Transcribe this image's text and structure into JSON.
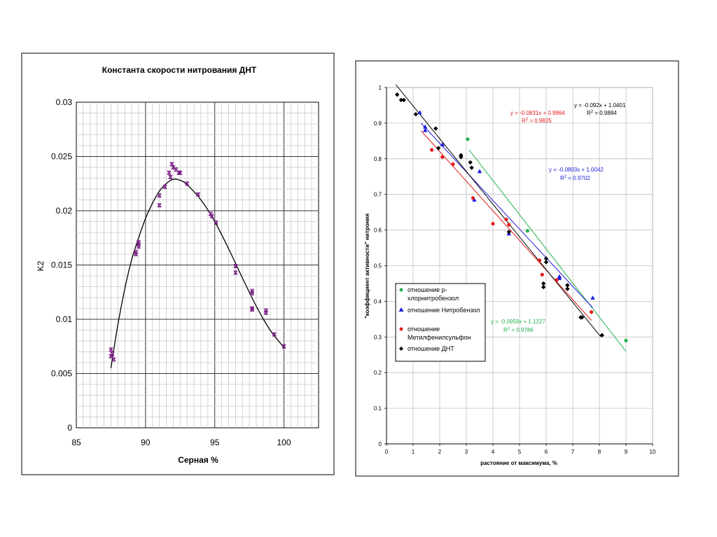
{
  "chart_data": [
    {
      "type": "scatter",
      "title": "Константа скорости нитрования ДНТ",
      "xlabel": "Серная %",
      "ylabel": "K2",
      "xlim": [
        85,
        102.5
      ],
      "ylim": [
        0,
        0.03
      ],
      "x_ticks": [
        85,
        90,
        95,
        100
      ],
      "y_ticks": [
        0,
        0.005,
        0.01,
        0.015,
        0.02,
        0.025,
        0.03
      ],
      "x_tick_labels": [
        "85",
        "90",
        "95",
        "100"
      ],
      "y_tick_labels": [
        "0",
        "0.005",
        "0.01",
        "0.015",
        "0.02",
        "0.025",
        "0.03"
      ],
      "grid": true,
      "marker_color": "#7a1f86",
      "points": [
        {
          "x": 87.5,
          "y": 0.0072
        },
        {
          "x": 87.6,
          "y": 0.0068
        },
        {
          "x": 87.5,
          "y": 0.0066
        },
        {
          "x": 87.7,
          "y": 0.0063
        },
        {
          "x": 89.3,
          "y": 0.0162
        },
        {
          "x": 89.3,
          "y": 0.016
        },
        {
          "x": 89.5,
          "y": 0.0169
        },
        {
          "x": 89.5,
          "y": 0.0171
        },
        {
          "x": 89.5,
          "y": 0.0167
        },
        {
          "x": 91.0,
          "y": 0.0214
        },
        {
          "x": 91.0,
          "y": 0.0205
        },
        {
          "x": 91.4,
          "y": 0.0222
        },
        {
          "x": 91.7,
          "y": 0.0235
        },
        {
          "x": 91.8,
          "y": 0.0231
        },
        {
          "x": 91.9,
          "y": 0.0243
        },
        {
          "x": 92.0,
          "y": 0.024
        },
        {
          "x": 92.2,
          "y": 0.0238
        },
        {
          "x": 92.4,
          "y": 0.0235
        },
        {
          "x": 92.5,
          "y": 0.0235
        },
        {
          "x": 93.0,
          "y": 0.0225
        },
        {
          "x": 93.8,
          "y": 0.0215
        },
        {
          "x": 94.7,
          "y": 0.0197
        },
        {
          "x": 94.8,
          "y": 0.0195
        },
        {
          "x": 95.1,
          "y": 0.0189
        },
        {
          "x": 96.5,
          "y": 0.0149
        },
        {
          "x": 96.5,
          "y": 0.0143
        },
        {
          "x": 97.7,
          "y": 0.0126
        },
        {
          "x": 97.7,
          "y": 0.0124
        },
        {
          "x": 97.7,
          "y": 0.011
        },
        {
          "x": 97.7,
          "y": 0.0109
        },
        {
          "x": 98.7,
          "y": 0.0108
        },
        {
          "x": 98.7,
          "y": 0.0106
        },
        {
          "x": 99.3,
          "y": 0.0086
        },
        {
          "x": 100.0,
          "y": 0.0075
        }
      ],
      "trend_line": [
        {
          "x": 87.5,
          "y": 0.0055
        },
        {
          "x": 88.0,
          "y": 0.0095
        },
        {
          "x": 88.5,
          "y": 0.0128
        },
        {
          "x": 89.0,
          "y": 0.0155
        },
        {
          "x": 89.5,
          "y": 0.0175
        },
        {
          "x": 90.0,
          "y": 0.0193
        },
        {
          "x": 90.5,
          "y": 0.0207
        },
        {
          "x": 91.0,
          "y": 0.0218
        },
        {
          "x": 91.5,
          "y": 0.0225
        },
        {
          "x": 92.0,
          "y": 0.0229
        },
        {
          "x": 92.5,
          "y": 0.0228
        },
        {
          "x": 93.0,
          "y": 0.0224
        },
        {
          "x": 94.0,
          "y": 0.021
        },
        {
          "x": 95.0,
          "y": 0.019
        },
        {
          "x": 96.0,
          "y": 0.0165
        },
        {
          "x": 97.0,
          "y": 0.0138
        },
        {
          "x": 98.0,
          "y": 0.0112
        },
        {
          "x": 99.0,
          "y": 0.009
        },
        {
          "x": 100.0,
          "y": 0.0074
        }
      ]
    },
    {
      "type": "scatter",
      "title": "",
      "xlabel": "растояние от максимума, %",
      "ylabel": "\"коэффициент активности\" нитрония",
      "xlim": [
        0,
        10
      ],
      "ylim": [
        0,
        1
      ],
      "x_ticks": [
        0,
        1,
        2,
        3,
        4,
        5,
        6,
        7,
        8,
        9,
        10
      ],
      "y_ticks": [
        0,
        0.1,
        0.2,
        0.3,
        0.4,
        0.5,
        0.6,
        0.7,
        0.8,
        0.9,
        1
      ],
      "x_tick_labels": [
        "0",
        "1",
        "2",
        "3",
        "4",
        "5",
        "6",
        "7",
        "8",
        "9",
        "10"
      ],
      "y_tick_labels": [
        "0",
        "0.1",
        "0.2",
        "0.3",
        "0.4",
        "0.5",
        "0.6",
        "0.7",
        "0.8",
        "0.9",
        "1"
      ],
      "grid": true,
      "legend_placement": "left-center",
      "series": [
        {
          "name": "отношение р-хлорнитробензол",
          "legend_lines": [
            "отношение р-",
            "хлорнитробензол"
          ],
          "marker": "circle",
          "color": "#22b14c",
          "points": [
            {
              "x": 3.05,
              "y": 0.855
            },
            {
              "x": 5.3,
              "y": 0.598
            },
            {
              "x": 9.0,
              "y": 0.29
            }
          ],
          "fit": {
            "x1": 3.1,
            "y1": 0.8254,
            "x2": 9.0,
            "y2": 0.2596
          },
          "equation": "y = -0.0959x + 1.1227",
          "r2_label": "R",
          "r2_value": " = 0.9786",
          "r2_sup": "2"
        },
        {
          "name": "отношение Нитробензол",
          "legend_lines": [
            "отношение Нитробензол"
          ],
          "marker": "triangle",
          "color": "#1a1adb",
          "points": [
            {
              "x": 1.25,
              "y": 0.93
            },
            {
              "x": 1.45,
              "y": 0.89
            },
            {
              "x": 1.45,
              "y": 0.88
            },
            {
              "x": 2.1,
              "y": 0.84
            },
            {
              "x": 3.3,
              "y": 0.685
            },
            {
              "x": 3.5,
              "y": 0.765
            },
            {
              "x": 4.6,
              "y": 0.59
            },
            {
              "x": 6.5,
              "y": 0.47
            },
            {
              "x": 6.5,
              "y": 0.465
            },
            {
              "x": 7.75,
              "y": 0.41
            }
          ],
          "fit": {
            "x1": 1.3,
            "y1": 0.8998,
            "x2": 7.75,
            "y2": 0.3819
          },
          "equation": "y = -0.0803x + 1.0042",
          "r2_label": "R",
          "r2_value": " = 0.9702",
          "r2_sup": "2"
        },
        {
          "name": "отношение Метилфенилсульфон",
          "legend_lines": [
            "отношение",
            "Метилфенилсульфон"
          ],
          "marker": "circle",
          "color": "#e31a1c",
          "points": [
            {
              "x": 1.7,
              "y": 0.825
            },
            {
              "x": 2.1,
              "y": 0.805
            },
            {
              "x": 2.5,
              "y": 0.785
            },
            {
              "x": 3.25,
              "y": 0.69
            },
            {
              "x": 4.0,
              "y": 0.618
            },
            {
              "x": 4.5,
              "y": 0.63
            },
            {
              "x": 4.6,
              "y": 0.615
            },
            {
              "x": 5.75,
              "y": 0.515
            },
            {
              "x": 5.85,
              "y": 0.475
            },
            {
              "x": 6.4,
              "y": 0.46
            },
            {
              "x": 7.7,
              "y": 0.37
            }
          ],
          "fit": {
            "x1": 1.3,
            "y1": 0.8784,
            "x2": 7.7,
            "y2": 0.3465
          },
          "equation": "y = -0.0831x + 0.9864",
          "r2_label": "R",
          "r2_value": " = 0.9825",
          "r2_sup": "2"
        },
        {
          "name": "отношение ДНТ",
          "legend_lines": [
            "отношение ДНТ"
          ],
          "marker": "diamond",
          "color": "#000000",
          "points": [
            {
              "x": 0.4,
              "y": 0.98
            },
            {
              "x": 0.55,
              "y": 0.965
            },
            {
              "x": 0.65,
              "y": 0.965
            },
            {
              "x": 1.1,
              "y": 0.925
            },
            {
              "x": 1.85,
              "y": 0.885
            },
            {
              "x": 1.95,
              "y": 0.83
            },
            {
              "x": 2.8,
              "y": 0.805
            },
            {
              "x": 2.8,
              "y": 0.81
            },
            {
              "x": 3.15,
              "y": 0.79
            },
            {
              "x": 3.2,
              "y": 0.775
            },
            {
              "x": 4.6,
              "y": 0.595
            },
            {
              "x": 5.9,
              "y": 0.45
            },
            {
              "x": 5.9,
              "y": 0.44
            },
            {
              "x": 6.0,
              "y": 0.52
            },
            {
              "x": 6.0,
              "y": 0.51
            },
            {
              "x": 6.8,
              "y": 0.445
            },
            {
              "x": 6.8,
              "y": 0.435
            },
            {
              "x": 7.3,
              "y": 0.355
            },
            {
              "x": 7.35,
              "y": 0.355
            },
            {
              "x": 8.1,
              "y": 0.305
            }
          ],
          "fit": {
            "x1": 0.35,
            "y1": 1.0079,
            "x2": 8.05,
            "y2": 0.3009
          },
          "equation": "y = -0.092x + 1.0401",
          "r2_label": "R",
          "r2_value": " = 0.9884",
          "r2_sup": "2"
        }
      ]
    }
  ]
}
